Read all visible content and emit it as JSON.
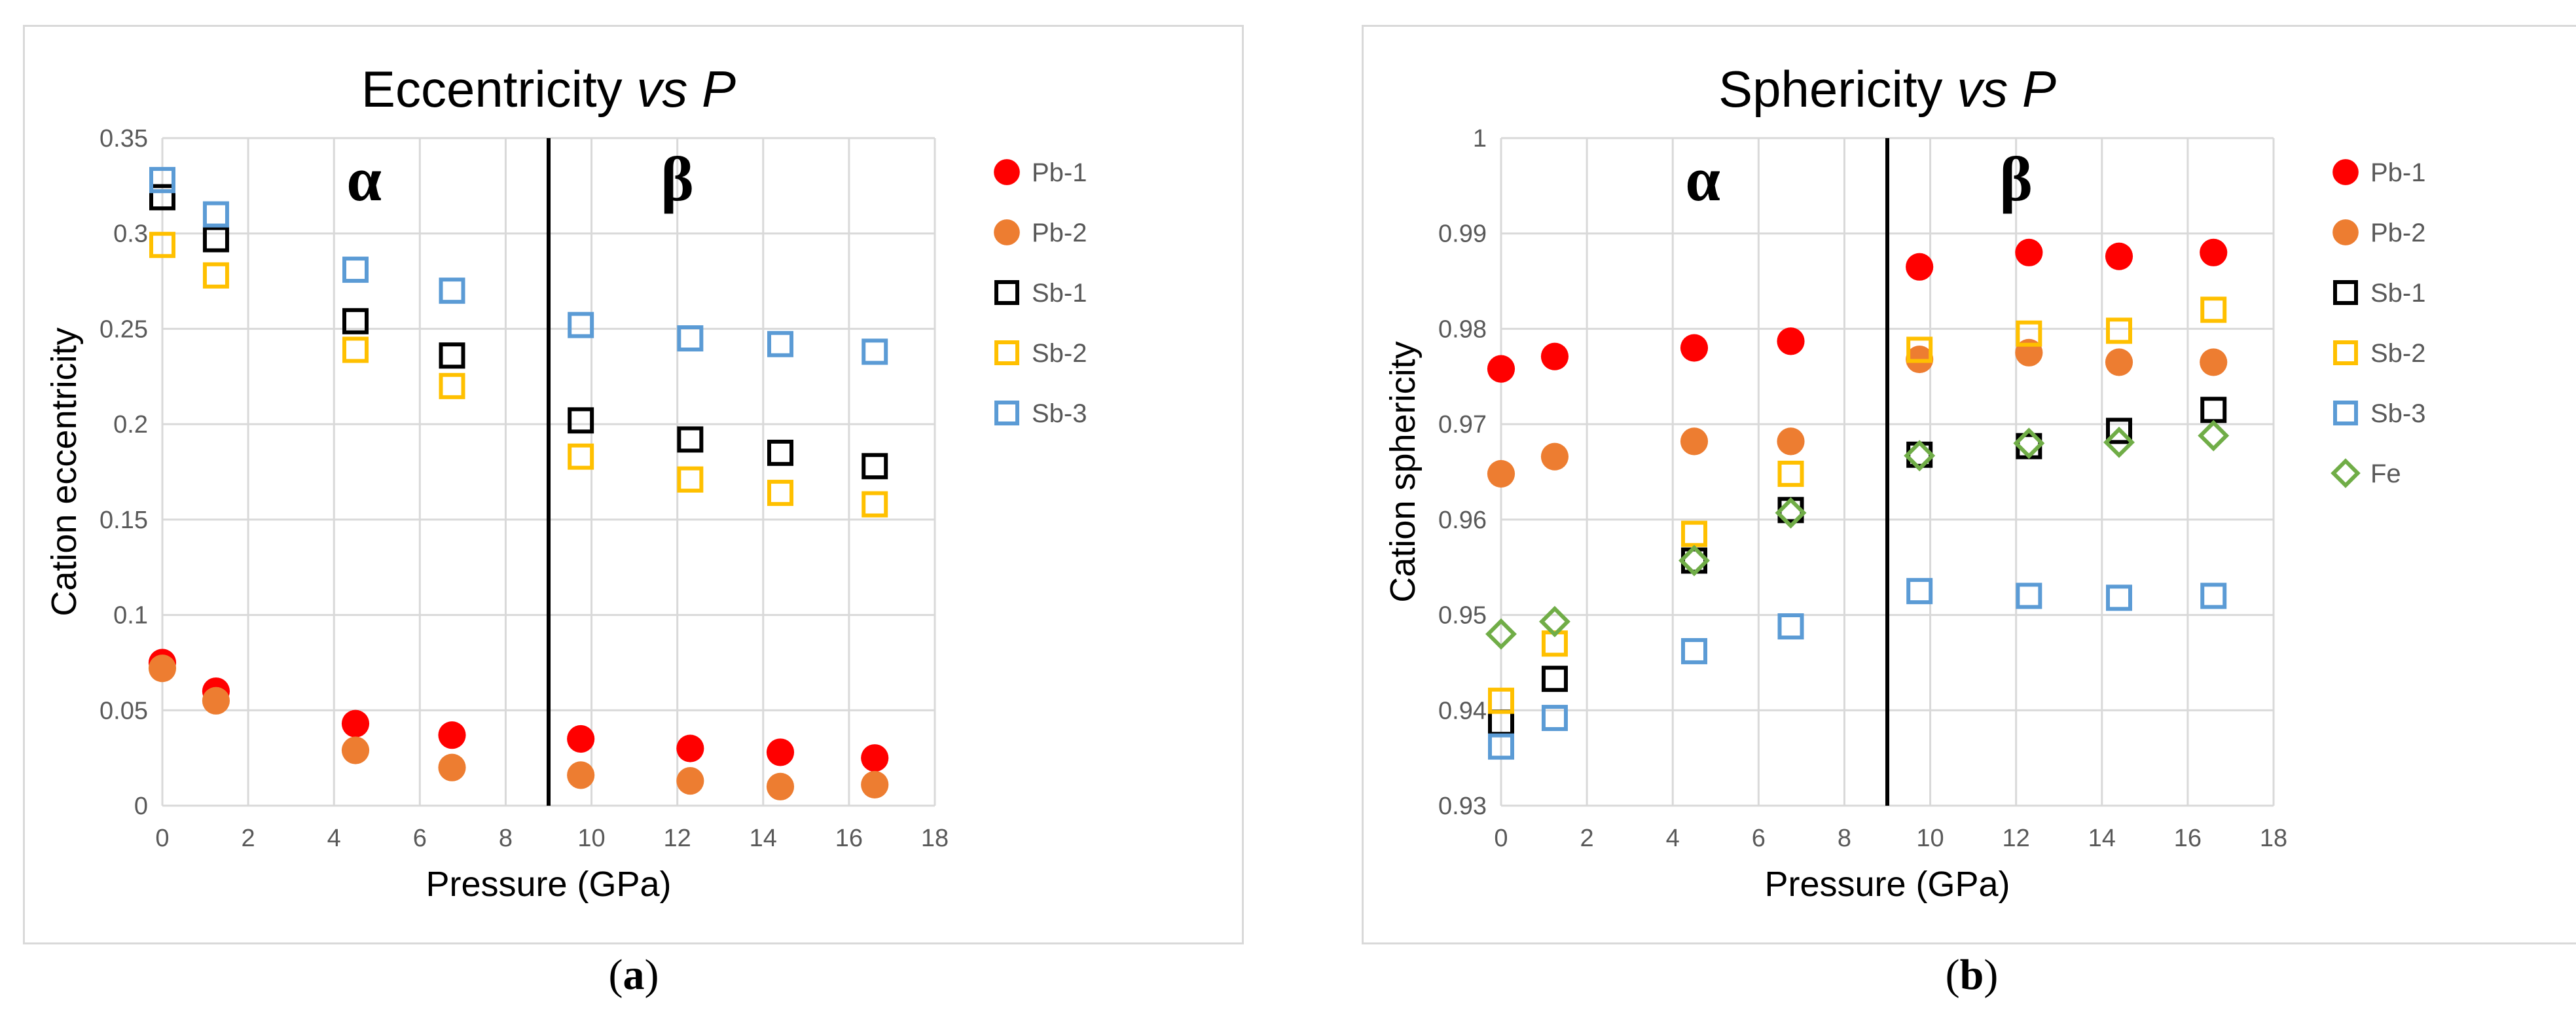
{
  "chart_data": [
    {
      "type": "scatter",
      "title": "Eccentricity",
      "title_italic": "vs P",
      "xlabel": "Pressure (GPa)",
      "ylabel": "Cation eccentricity",
      "xlim": [
        0,
        18
      ],
      "ylim": [
        0,
        0.35
      ],
      "xticks": [
        "0",
        "2",
        "4",
        "6",
        "8",
        "10",
        "12",
        "14",
        "16",
        "18"
      ],
      "yticks": [
        "0",
        "0.05",
        "0.1",
        "0.15",
        "0.2",
        "0.25",
        "0.3",
        "0.35"
      ],
      "grid": true,
      "legend_position": "right",
      "divider_x": 9.0,
      "phase_labels": [
        {
          "text": "α",
          "x": 4.7
        },
        {
          "text": "β",
          "x": 12.0
        }
      ],
      "series": [
        {
          "name": "Pb-1",
          "marker": "circle",
          "color": "#ff0000",
          "x": [
            0,
            1.25,
            4.5,
            6.75,
            9.75,
            12.3,
            14.4,
            16.6
          ],
          "y": [
            0.075,
            0.06,
            0.043,
            0.037,
            0.035,
            0.03,
            0.028,
            0.025
          ]
        },
        {
          "name": "Pb-2",
          "marker": "circle",
          "color": "#ed7d31",
          "x": [
            0,
            1.25,
            4.5,
            6.75,
            9.75,
            12.3,
            14.4,
            16.6
          ],
          "y": [
            0.072,
            0.055,
            0.029,
            0.02,
            0.016,
            0.013,
            0.01,
            0.011
          ]
        },
        {
          "name": "Sb-1",
          "marker": "square",
          "color": "#000000",
          "x": [
            0,
            1.25,
            4.5,
            6.75,
            9.75,
            12.3,
            14.4,
            16.6
          ],
          "y": [
            0.319,
            0.297,
            0.254,
            0.236,
            0.202,
            0.192,
            0.185,
            0.178
          ]
        },
        {
          "name": "Sb-2",
          "marker": "square",
          "color": "#ffc000",
          "x": [
            0,
            1.25,
            4.5,
            6.75,
            9.75,
            12.3,
            14.4,
            16.6
          ],
          "y": [
            0.294,
            0.278,
            0.239,
            0.22,
            0.183,
            0.171,
            0.164,
            0.158
          ]
        },
        {
          "name": "Sb-3",
          "marker": "square",
          "color": "#5b9bd5",
          "x": [
            0,
            1.25,
            4.5,
            6.75,
            9.75,
            12.3,
            14.4,
            16.6
          ],
          "y": [
            0.328,
            0.31,
            0.281,
            0.27,
            0.252,
            0.245,
            0.242,
            0.238
          ]
        }
      ]
    },
    {
      "type": "scatter",
      "title": "Sphericity",
      "title_italic": "vs P",
      "xlabel": "Pressure (GPa)",
      "ylabel": "Cation sphericity",
      "xlim": [
        0,
        18
      ],
      "ylim": [
        0.93,
        1.0
      ],
      "xticks": [
        "0",
        "2",
        "4",
        "6",
        "8",
        "10",
        "12",
        "14",
        "16",
        "18"
      ],
      "yticks": [
        "0.93",
        "0.94",
        "0.95",
        "0.96",
        "0.97",
        "0.98",
        "0.99",
        "1"
      ],
      "grid": true,
      "legend_position": "right",
      "divider_x": 9.0,
      "phase_labels": [
        {
          "text": "α",
          "x": 4.7
        },
        {
          "text": "β",
          "x": 12.0
        }
      ],
      "series": [
        {
          "name": "Pb-1",
          "marker": "circle",
          "color": "#ff0000",
          "x": [
            0,
            1.25,
            4.5,
            6.75,
            9.75,
            12.3,
            14.4,
            16.6
          ],
          "y": [
            0.9758,
            0.9771,
            0.978,
            0.9787,
            0.9865,
            0.988,
            0.9876,
            0.988
          ]
        },
        {
          "name": "Pb-2",
          "marker": "circle",
          "color": "#ed7d31",
          "x": [
            0,
            1.25,
            4.5,
            6.75,
            9.75,
            12.3,
            14.4,
            16.6
          ],
          "y": [
            0.9648,
            0.9666,
            0.9682,
            0.9682,
            0.9768,
            0.9775,
            0.9765,
            0.9765
          ]
        },
        {
          "name": "Sb-1",
          "marker": "square",
          "color": "#000000",
          "x": [
            0,
            1.25,
            4.5,
            6.75,
            9.75,
            12.3,
            14.4,
            16.6
          ],
          "y": [
            0.9387,
            0.9433,
            0.9557,
            0.961,
            0.9668,
            0.9677,
            0.9693,
            0.9715
          ]
        },
        {
          "name": "Sb-2",
          "marker": "square",
          "color": "#ffc000",
          "x": [
            0,
            1.25,
            4.5,
            6.75,
            9.75,
            12.3,
            14.4,
            16.6
          ],
          "y": [
            0.941,
            0.947,
            0.9585,
            0.9648,
            0.9778,
            0.9795,
            0.9798,
            0.982
          ]
        },
        {
          "name": "Sb-3",
          "marker": "square",
          "color": "#5b9bd5",
          "x": [
            0,
            1.25,
            4.5,
            6.75,
            9.75,
            12.3,
            14.4,
            16.6
          ],
          "y": [
            0.9362,
            0.9392,
            0.9462,
            0.9488,
            0.9525,
            0.952,
            0.9518,
            0.952
          ]
        },
        {
          "name": "Fe",
          "marker": "diamond",
          "color": "#70ad47",
          "x": [
            0,
            1.25,
            4.5,
            6.75,
            9.75,
            12.3,
            14.4,
            16.6
          ],
          "y": [
            0.948,
            0.9493,
            0.9557,
            0.9607,
            0.9667,
            0.968,
            0.9681,
            0.9688
          ]
        }
      ]
    }
  ],
  "captions": [
    "a",
    "b"
  ]
}
